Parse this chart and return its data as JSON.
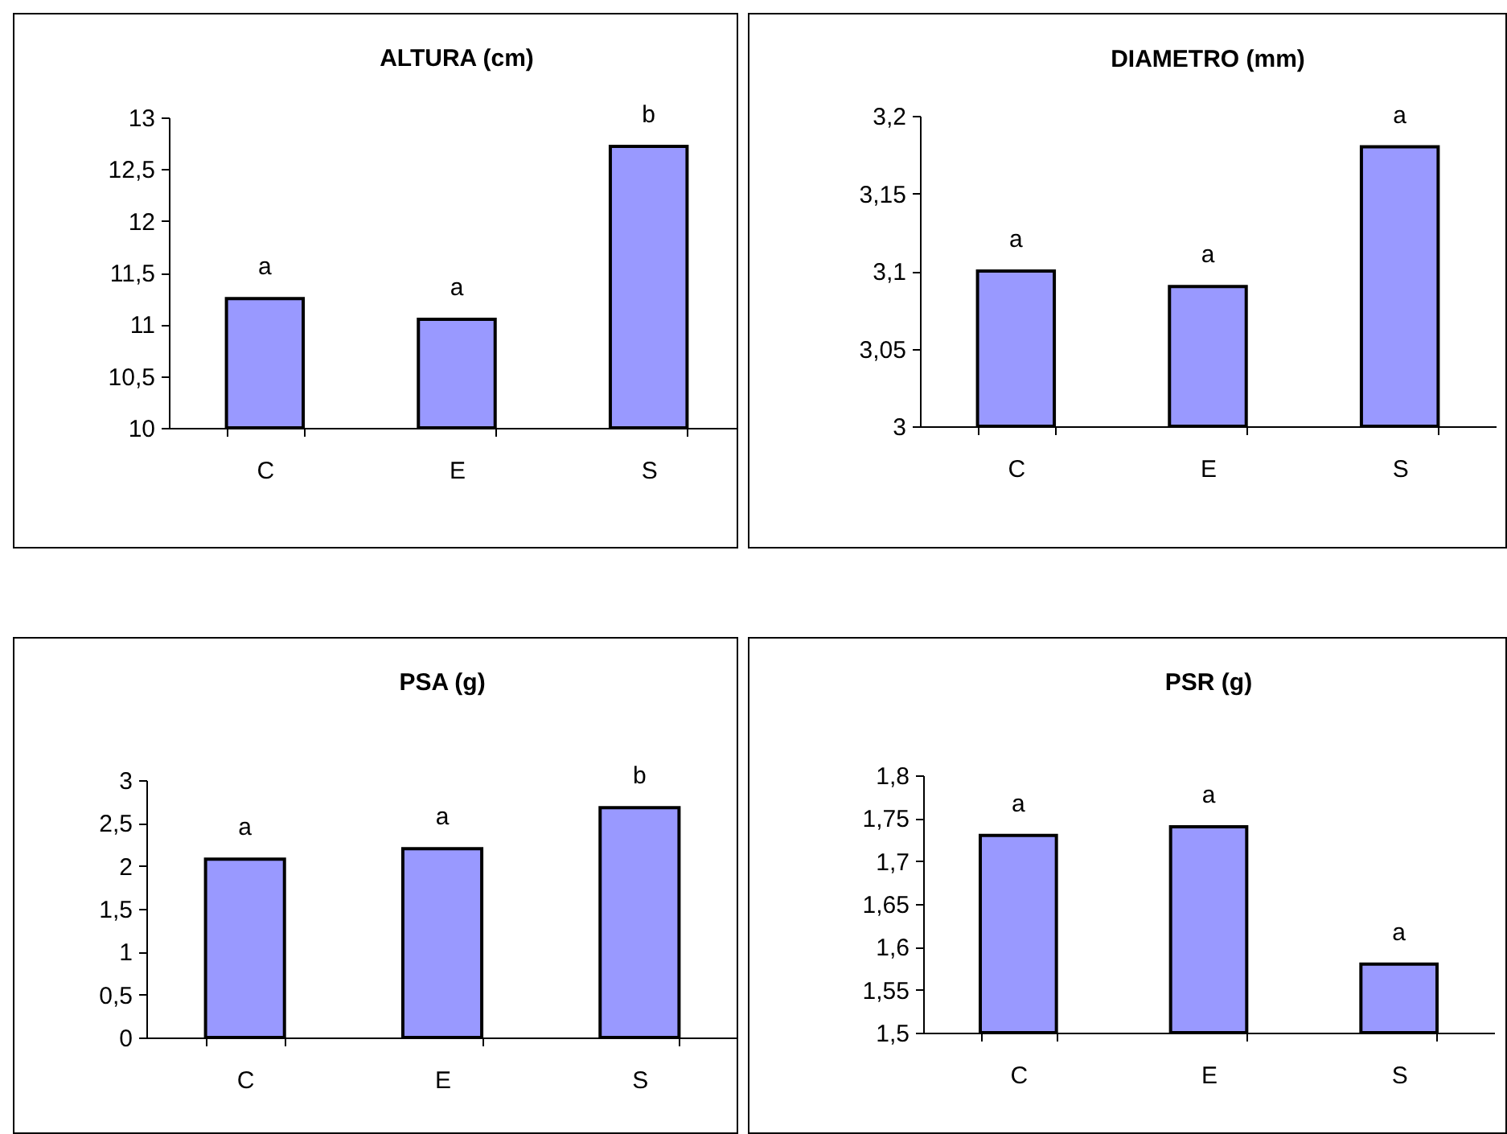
{
  "chart_data": [
    {
      "type": "bar",
      "title": "ALTURA (cm)",
      "categories": [
        "C",
        "E",
        "S"
      ],
      "values": [
        11.25,
        11.05,
        12.72
      ],
      "color": "#9999ff",
      "ylim": [
        10,
        13
      ],
      "yticks": [
        10,
        {
          "value": 10.5,
          "label": "10,5"
        },
        11,
        {
          "value": 11.5,
          "label": "11,5"
        },
        12,
        {
          "value": 12.5,
          "label": "12,5"
        },
        13
      ],
      "grid": false,
      "annotations": [
        {
          "text": "a",
          "x": "C",
          "y": 11.25
        },
        {
          "text": "a",
          "x": "E",
          "y": 11.05
        },
        {
          "text": "b",
          "x": "S",
          "y": 12.72
        }
      ]
    },
    {
      "type": "bar",
      "title": "DIAMETRO (mm)",
      "categories": [
        "C",
        "E",
        "S"
      ],
      "values": [
        3.1,
        3.09,
        3.18
      ],
      "color": "#9999ff",
      "ylim": [
        3,
        3.2
      ],
      "yticks": [
        3,
        {
          "value": 3.05,
          "label": "3,05"
        },
        {
          "value": 3.1,
          "label": "3,1"
        },
        {
          "value": 3.15,
          "label": "3,15"
        },
        {
          "value": 3.2,
          "label": "3,2"
        }
      ],
      "grid": false,
      "annotations": [
        {
          "text": "a",
          "x": "C",
          "y": 3.1
        },
        {
          "text": "a",
          "x": "E",
          "y": 3.09
        },
        {
          "text": "a",
          "x": "S",
          "y": 3.18
        }
      ]
    },
    {
      "type": "bar",
      "title": "PSA (g)",
      "categories": [
        "C",
        "E",
        "S"
      ],
      "values": [
        2.08,
        2.2,
        2.68
      ],
      "color": "#9999ff",
      "ylim": [
        0,
        3
      ],
      "yticks": [
        0,
        {
          "value": 0.5,
          "label": "0,5"
        },
        1,
        {
          "value": 1.5,
          "label": "1,5"
        },
        2,
        {
          "value": 2.5,
          "label": "2,5"
        },
        3
      ],
      "grid": false,
      "annotations": [
        {
          "text": "a",
          "x": "C",
          "y": 2.08
        },
        {
          "text": "a",
          "x": "E",
          "y": 2.2
        },
        {
          "text": "b",
          "x": "S",
          "y": 2.68
        }
      ]
    },
    {
      "type": "bar",
      "title": "PSR (g)",
      "categories": [
        "C",
        "E",
        "S"
      ],
      "values": [
        1.73,
        1.74,
        1.58
      ],
      "color": "#9999ff",
      "ylim": [
        1.5,
        1.8
      ],
      "yticks": [
        {
          "value": 1.5,
          "label": "1,5"
        },
        {
          "value": 1.55,
          "label": "1,55"
        },
        {
          "value": 1.6,
          "label": "1,6"
        },
        {
          "value": 1.65,
          "label": "1,65"
        },
        {
          "value": 1.7,
          "label": "1,7"
        },
        {
          "value": 1.75,
          "label": "1,75"
        },
        {
          "value": 1.8,
          "label": "1,8"
        }
      ],
      "grid": false,
      "annotations": [
        {
          "text": "a",
          "x": "C",
          "y": 1.73
        },
        {
          "text": "a",
          "x": "E",
          "y": 1.74
        },
        {
          "text": "a",
          "x": "S",
          "y": 1.58
        }
      ]
    }
  ]
}
